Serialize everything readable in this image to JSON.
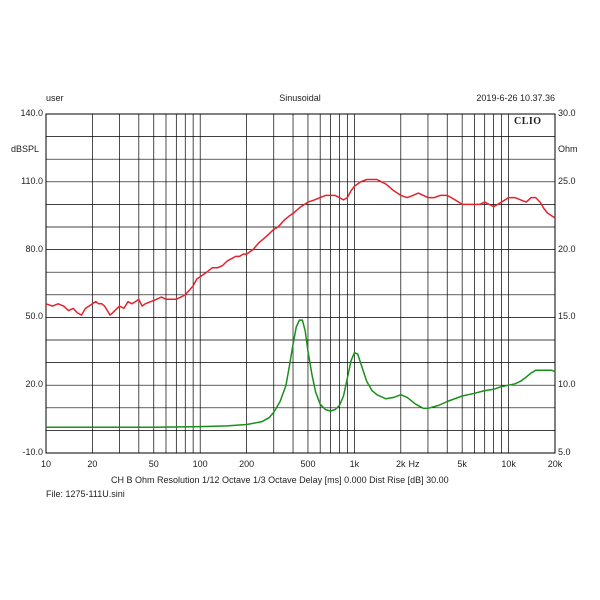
{
  "header": {
    "left": "user",
    "center": "Sinusoidal",
    "right": "2019-6-26 10.37.36"
  },
  "logo": "CLIO",
  "footer": {
    "settings": "CH B  Ohm  Resolution 1/12 Octave  1/3 Octave  Delay [ms] 0.000  Dist Rise [dB] 30.00",
    "file": "File: 1275-111U.sini"
  },
  "chart_data": {
    "type": "line",
    "x_scale": "log",
    "xlim": [
      10,
      20000
    ],
    "x_ticks": [
      {
        "value": 10,
        "label": "10"
      },
      {
        "value": 20,
        "label": "20"
      },
      {
        "value": 50,
        "label": "50"
      },
      {
        "value": 100,
        "label": "100"
      },
      {
        "value": 200,
        "label": "200"
      },
      {
        "value": 500,
        "label": "500"
      },
      {
        "value": 1000,
        "label": "1k"
      },
      {
        "value": 2000,
        "label": "2k"
      },
      {
        "value": 5000,
        "label": "5k"
      },
      {
        "value": 10000,
        "label": "10k"
      },
      {
        "value": 20000,
        "label": "20k"
      }
    ],
    "x_unit": "Hz",
    "y_left": {
      "unit": "dBSPL",
      "ylim": [
        -10,
        140
      ],
      "ticks": [
        "140.0",
        "110.0",
        "80.0",
        "50.0",
        "20.0",
        "-10.0"
      ],
      "tick_values": [
        140,
        110,
        80,
        50,
        20,
        -10
      ]
    },
    "y_right": {
      "unit": "Ohm",
      "ylim": [
        5,
        30
      ],
      "ticks": [
        "30.0",
        "25.0",
        "20.0",
        "15.0",
        "10.0",
        "5.0"
      ],
      "tick_values": [
        30,
        25,
        20,
        15,
        10,
        5
      ]
    },
    "grid": true,
    "series": [
      {
        "axis": "left",
        "color": "#e8202a",
        "points": [
          [
            10,
            56
          ],
          [
            11,
            55
          ],
          [
            12,
            56
          ],
          [
            13,
            55
          ],
          [
            14,
            53
          ],
          [
            15,
            54
          ],
          [
            16,
            52
          ],
          [
            17,
            51
          ],
          [
            18,
            54
          ],
          [
            19,
            55
          ],
          [
            20,
            56
          ],
          [
            21,
            57
          ],
          [
            22,
            56
          ],
          [
            23,
            56
          ],
          [
            24,
            55
          ],
          [
            25,
            53
          ],
          [
            26,
            51
          ],
          [
            27,
            52
          ],
          [
            28,
            53
          ],
          [
            30,
            55
          ],
          [
            32,
            54
          ],
          [
            34,
            57
          ],
          [
            36,
            56
          ],
          [
            38,
            57
          ],
          [
            40,
            58
          ],
          [
            42,
            55
          ],
          [
            44,
            56
          ],
          [
            48,
            57
          ],
          [
            52,
            58
          ],
          [
            56,
            59
          ],
          [
            60,
            58
          ],
          [
            65,
            58
          ],
          [
            70,
            58
          ],
          [
            75,
            59
          ],
          [
            80,
            60
          ],
          [
            85,
            62
          ],
          [
            90,
            64
          ],
          [
            95,
            67
          ],
          [
            100,
            68
          ],
          [
            110,
            70
          ],
          [
            120,
            72
          ],
          [
            130,
            72
          ],
          [
            140,
            73
          ],
          [
            150,
            75
          ],
          [
            160,
            76
          ],
          [
            170,
            77
          ],
          [
            180,
            77
          ],
          [
            190,
            78
          ],
          [
            200,
            78
          ],
          [
            220,
            80
          ],
          [
            240,
            83
          ],
          [
            260,
            85
          ],
          [
            280,
            87
          ],
          [
            300,
            89
          ],
          [
            320,
            90
          ],
          [
            350,
            93
          ],
          [
            380,
            95
          ],
          [
            400,
            96
          ],
          [
            450,
            99
          ],
          [
            500,
            101
          ],
          [
            550,
            102
          ],
          [
            600,
            103
          ],
          [
            650,
            104
          ],
          [
            700,
            104
          ],
          [
            750,
            104
          ],
          [
            800,
            103
          ],
          [
            850,
            102
          ],
          [
            900,
            103
          ],
          [
            950,
            106
          ],
          [
            1000,
            108
          ],
          [
            1100,
            110
          ],
          [
            1200,
            111
          ],
          [
            1300,
            111
          ],
          [
            1400,
            111
          ],
          [
            1500,
            110
          ],
          [
            1600,
            109
          ],
          [
            1800,
            106
          ],
          [
            2000,
            104
          ],
          [
            2200,
            103
          ],
          [
            2400,
            104
          ],
          [
            2600,
            105
          ],
          [
            2800,
            104
          ],
          [
            3000,
            103
          ],
          [
            3300,
            103
          ],
          [
            3600,
            104
          ],
          [
            4000,
            104
          ],
          [
            4500,
            102
          ],
          [
            5000,
            100
          ],
          [
            5500,
            100
          ],
          [
            6000,
            100
          ],
          [
            6500,
            100
          ],
          [
            7000,
            101
          ],
          [
            7500,
            100
          ],
          [
            8000,
            99
          ],
          [
            9000,
            101
          ],
          [
            10000,
            103
          ],
          [
            11000,
            103
          ],
          [
            12000,
            102
          ],
          [
            13000,
            101
          ],
          [
            14000,
            103
          ],
          [
            15000,
            103
          ],
          [
            16000,
            101
          ],
          [
            17000,
            98
          ],
          [
            18000,
            96
          ],
          [
            19000,
            95
          ],
          [
            20000,
            94
          ]
        ]
      },
      {
        "axis": "right",
        "color": "#1a8f1a",
        "points": [
          [
            10,
            6.9
          ],
          [
            50,
            6.9
          ],
          [
            100,
            6.95
          ],
          [
            150,
            7.0
          ],
          [
            200,
            7.1
          ],
          [
            250,
            7.3
          ],
          [
            280,
            7.6
          ],
          [
            300,
            8.0
          ],
          [
            330,
            8.8
          ],
          [
            360,
            10.0
          ],
          [
            380,
            11.5
          ],
          [
            400,
            13.0
          ],
          [
            420,
            14.3
          ],
          [
            440,
            14.8
          ],
          [
            460,
            14.8
          ],
          [
            480,
            14.0
          ],
          [
            500,
            12.5
          ],
          [
            530,
            10.8
          ],
          [
            560,
            9.5
          ],
          [
            600,
            8.6
          ],
          [
            650,
            8.2
          ],
          [
            700,
            8.1
          ],
          [
            750,
            8.2
          ],
          [
            800,
            8.5
          ],
          [
            850,
            9.2
          ],
          [
            900,
            10.5
          ],
          [
            950,
            11.8
          ],
          [
            1000,
            12.4
          ],
          [
            1050,
            12.3
          ],
          [
            1100,
            11.6
          ],
          [
            1200,
            10.3
          ],
          [
            1300,
            9.6
          ],
          [
            1400,
            9.3
          ],
          [
            1600,
            9.0
          ],
          [
            1800,
            9.1
          ],
          [
            2000,
            9.3
          ],
          [
            2200,
            9.1
          ],
          [
            2500,
            8.6
          ],
          [
            2800,
            8.3
          ],
          [
            3000,
            8.3
          ],
          [
            3500,
            8.5
          ],
          [
            4000,
            8.8
          ],
          [
            5000,
            9.2
          ],
          [
            6000,
            9.4
          ],
          [
            7000,
            9.6
          ],
          [
            8000,
            9.7
          ],
          [
            9000,
            9.9
          ],
          [
            10000,
            10.0
          ],
          [
            11000,
            10.1
          ],
          [
            12000,
            10.3
          ],
          [
            13000,
            10.6
          ],
          [
            14000,
            10.9
          ],
          [
            15000,
            11.1
          ],
          [
            17000,
            11.1
          ],
          [
            19000,
            11.1
          ],
          [
            20000,
            11.0
          ]
        ]
      }
    ]
  }
}
